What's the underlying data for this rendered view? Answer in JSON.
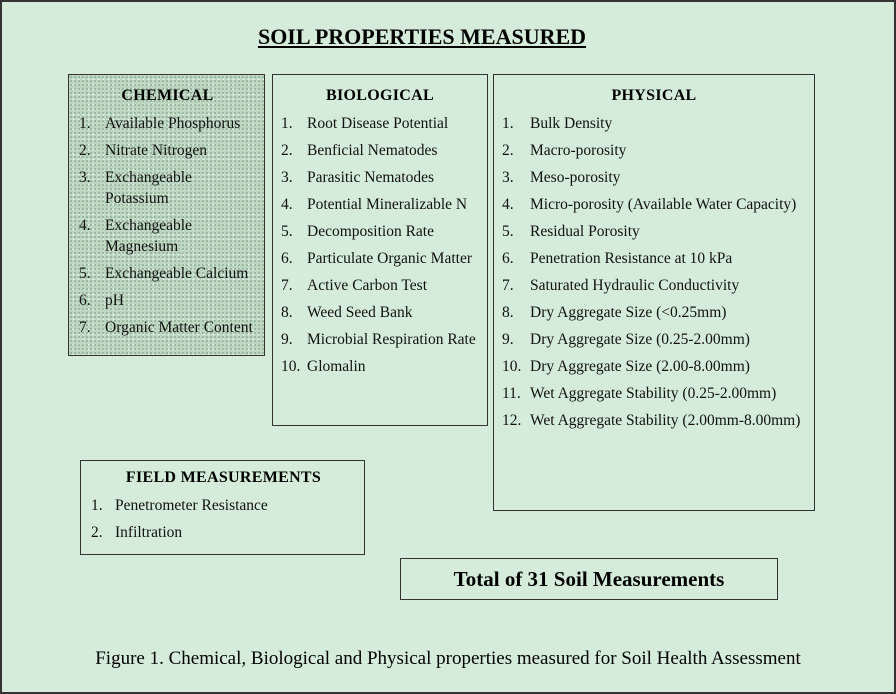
{
  "title": "SOIL PROPERTIES MEASURED",
  "chemical": {
    "heading": "CHEMICAL",
    "items": [
      {
        "number": "1.",
        "text": "Available Phosphorus"
      },
      {
        "number": "2.",
        "text": "Nitrate Nitrogen"
      },
      {
        "number": "3.",
        "text": "Exchangeable Potassium"
      },
      {
        "number": "4.",
        "text": "Exchangeable Magnesium"
      },
      {
        "number": "5.",
        "text": "Exchangeable Calcium"
      },
      {
        "number": "6.",
        "text": "pH"
      },
      {
        "number": "7.",
        "text": "Organic Matter Content"
      }
    ]
  },
  "biological": {
    "heading": "BIOLOGICAL",
    "items": [
      {
        "number": "1.",
        "text": "Root Disease Potential"
      },
      {
        "number": "2.",
        "text": "Benficial Nematodes"
      },
      {
        "number": "3.",
        "text": "Parasitic Nematodes"
      },
      {
        "number": "4.",
        "text": "Potential Mineralizable N"
      },
      {
        "number": "5.",
        "text": "Decomposition Rate"
      },
      {
        "number": "6.",
        "text": "Particulate Organic Matter"
      },
      {
        "number": "7.",
        "text": "Active Carbon Test"
      },
      {
        "number": "8.",
        "text": "Weed Seed Bank"
      },
      {
        "number": "9.",
        "text": "Microbial Respiration Rate"
      },
      {
        "number": "10.",
        "text": "Glomalin"
      }
    ]
  },
  "physical": {
    "heading": "PHYSICAL",
    "items": [
      {
        "number": "1.",
        "text": "Bulk Density"
      },
      {
        "number": "2.",
        "text": "Macro-porosity"
      },
      {
        "number": "3.",
        "text": "Meso-porosity"
      },
      {
        "number": "4.",
        "text": "Micro-porosity (Available Water Capacity)"
      },
      {
        "number": "5.",
        "text": "Residual Porosity"
      },
      {
        "number": "6.",
        "text": "Penetration Resistance at 10 kPa"
      },
      {
        "number": "7.",
        "text": "Saturated Hydraulic Conductivity"
      },
      {
        "number": "8.",
        "text": "Dry Aggregate Size (<0.25mm)"
      },
      {
        "number": "9.",
        "text": "Dry Aggregate Size (0.25-2.00mm)"
      },
      {
        "number": "10.",
        "text": "Dry Aggregate Size (2.00-8.00mm)"
      },
      {
        "number": "11.",
        "text": "Wet Aggregate Stability (0.25-2.00mm)"
      },
      {
        "number": "12.",
        "text": "Wet Aggregate Stability (2.00mm-8.00mm)"
      }
    ]
  },
  "field": {
    "heading": "FIELD MEASUREMENTS",
    "items": [
      {
        "number": "1.",
        "text": "Penetrometer Resistance"
      },
      {
        "number": "2.",
        "text": "Infiltration"
      }
    ]
  },
  "total": "Total of 31 Soil Measurements",
  "caption": "Figure 1. Chemical, Biological and Physical properties measured for Soil Health Assessment"
}
